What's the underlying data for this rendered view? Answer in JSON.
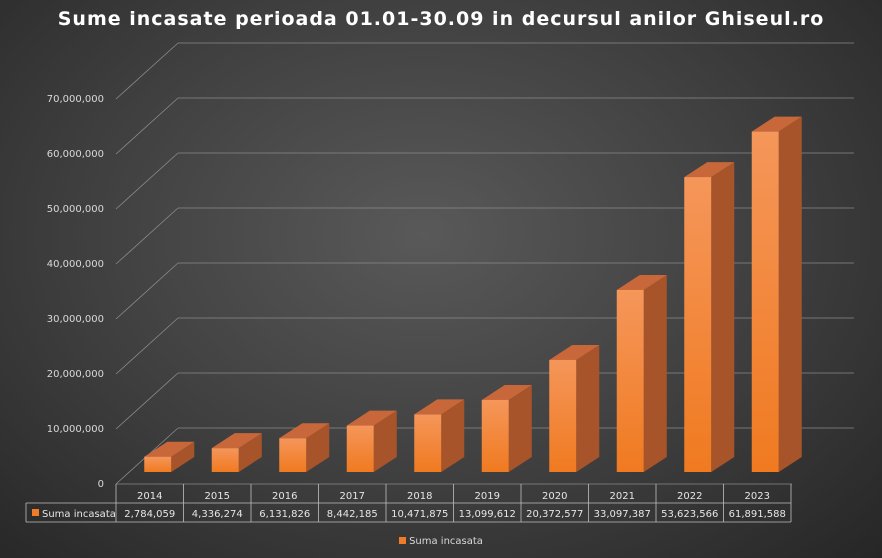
{
  "chart_data": {
    "type": "bar",
    "title": "Sume incasate perioada 01.01-30.09 in decursul anilor Ghiseul.ro",
    "categories": [
      "2014",
      "2015",
      "2016",
      "2017",
      "2018",
      "2019",
      "2020",
      "2021",
      "2022",
      "2023"
    ],
    "series": [
      {
        "name": "Suma incasata",
        "values": [
          2784059,
          4336274,
          6131826,
          8442185,
          10471875,
          13099612,
          20372577,
          33097387,
          53623566,
          61891588
        ],
        "value_labels": [
          "2,784,059",
          "4,336,274",
          "6,131,826",
          "8,442,185",
          "10,471,875",
          "13,099,612",
          "20,372,577",
          "33,097,387",
          "53,623,566",
          "61,891,588"
        ],
        "color": "#f07c28"
      }
    ],
    "ylim": [
      0,
      70000000
    ],
    "yticks": [
      0,
      10000000,
      20000000,
      30000000,
      40000000,
      50000000,
      60000000,
      70000000
    ],
    "ytick_labels": [
      "0",
      "10,000,000",
      "20,000,000",
      "30,000,000",
      "40,000,000",
      "50,000,000",
      "60,000,000",
      "70,000,000"
    ],
    "grid": true,
    "legend_position": "bottom",
    "data_table": true,
    "style": "3d-column"
  }
}
